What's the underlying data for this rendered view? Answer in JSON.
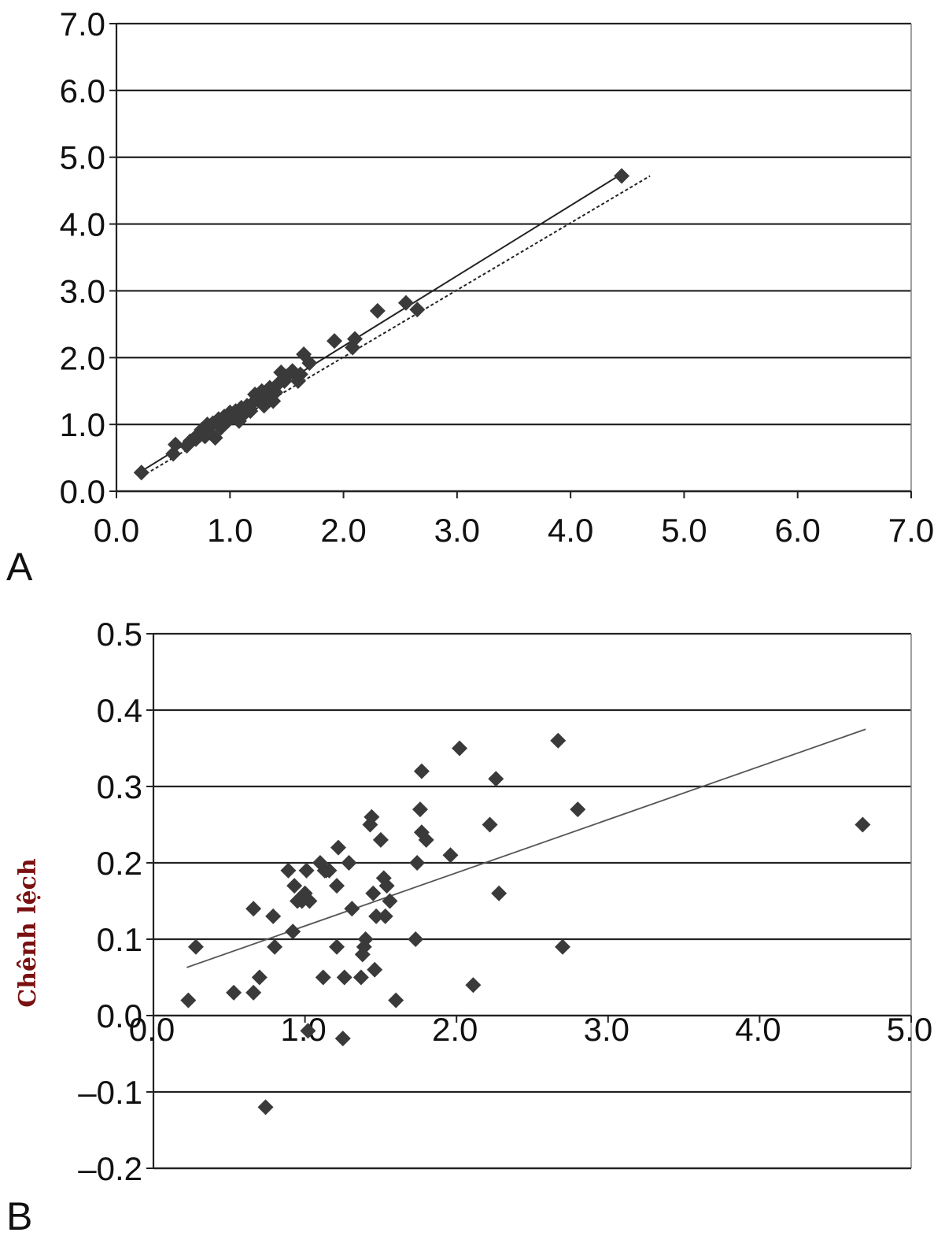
{
  "chart_data": [
    {
      "type": "scatter",
      "panel_label": "A",
      "xlabel": "",
      "ylabel": "",
      "xlim": [
        0,
        7
      ],
      "ylim": [
        0,
        7
      ],
      "x_ticks": [
        "0.0",
        "1.0",
        "2.0",
        "3.0",
        "4.0",
        "5.0",
        "6.0",
        "7.0"
      ],
      "y_ticks": [
        "0.0",
        "1.0",
        "2.0",
        "3.0",
        "4.0",
        "5.0",
        "6.0",
        "7.0"
      ],
      "grid": "horizontal",
      "marker": "diamond",
      "colors": {
        "marker": "#3a3a3a",
        "axis": "#222222"
      },
      "series": [
        {
          "points": [
            [
              0.22,
              0.28
            ],
            [
              0.5,
              0.56
            ],
            [
              0.52,
              0.7
            ],
            [
              0.62,
              0.68
            ],
            [
              0.65,
              0.75
            ],
            [
              0.7,
              0.78
            ],
            [
              0.72,
              0.85
            ],
            [
              0.75,
              0.92
            ],
            [
              0.78,
              0.82
            ],
            [
              0.8,
              1.0
            ],
            [
              0.82,
              0.88
            ],
            [
              0.85,
              1.02
            ],
            [
              0.87,
              0.8
            ],
            [
              0.9,
              1.08
            ],
            [
              0.92,
              0.95
            ],
            [
              0.95,
              1.12
            ],
            [
              0.98,
              1.05
            ],
            [
              1.0,
              1.18
            ],
            [
              1.02,
              1.1
            ],
            [
              1.05,
              1.2
            ],
            [
              1.08,
              1.05
            ],
            [
              1.1,
              1.25
            ],
            [
              1.12,
              1.15
            ],
            [
              1.15,
              1.28
            ],
            [
              1.18,
              1.2
            ],
            [
              1.2,
              1.32
            ],
            [
              1.22,
              1.45
            ],
            [
              1.25,
              1.38
            ],
            [
              1.28,
              1.5
            ],
            [
              1.3,
              1.28
            ],
            [
              1.32,
              1.42
            ],
            [
              1.35,
              1.55
            ],
            [
              1.38,
              1.35
            ],
            [
              1.4,
              1.48
            ],
            [
              1.42,
              1.6
            ],
            [
              1.45,
              1.78
            ],
            [
              1.48,
              1.65
            ],
            [
              1.5,
              1.72
            ],
            [
              1.55,
              1.8
            ],
            [
              1.6,
              1.65
            ],
            [
              1.62,
              1.75
            ],
            [
              1.65,
              2.05
            ],
            [
              1.7,
              1.92
            ],
            [
              1.92,
              2.25
            ],
            [
              2.08,
              2.15
            ],
            [
              2.1,
              2.28
            ],
            [
              2.3,
              2.7
            ],
            [
              2.55,
              2.82
            ],
            [
              2.65,
              2.72
            ],
            [
              4.45,
              4.72
            ]
          ]
        }
      ],
      "fit_lines": [
        {
          "style": "solid",
          "from": [
            0.22,
            0.3
          ],
          "to": [
            4.45,
            4.75
          ]
        },
        {
          "style": "dashed",
          "from": [
            0.22,
            0.22
          ],
          "to": [
            4.7,
            4.72
          ]
        }
      ]
    },
    {
      "type": "scatter",
      "panel_label": "B",
      "xlabel": "",
      "ylabel": "Chênh lệch",
      "xlim": [
        0,
        5
      ],
      "ylim": [
        -0.2,
        0.5
      ],
      "x_ticks": [
        "0.0",
        "1.0",
        "2.0",
        "3.0",
        "4.0",
        "5.0"
      ],
      "y_ticks": [
        "–0.2",
        "–0.1",
        "0.0",
        "0.1",
        "0.2",
        "0.3",
        "0.4",
        "0.5"
      ],
      "grid": "horizontal",
      "marker": "diamond",
      "colors": {
        "marker": "#3a3a3a",
        "axis": "#222222",
        "ylabel": "#7a1010"
      },
      "series": [
        {
          "points": [
            [
              0.23,
              0.02
            ],
            [
              0.28,
              0.09
            ],
            [
              0.53,
              0.03
            ],
            [
              0.66,
              0.14
            ],
            [
              0.66,
              0.03
            ],
            [
              0.7,
              0.05
            ],
            [
              0.74,
              -0.12
            ],
            [
              0.79,
              0.13
            ],
            [
              0.8,
              0.09
            ],
            [
              0.89,
              0.19
            ],
            [
              0.92,
              0.11
            ],
            [
              0.93,
              0.17
            ],
            [
              0.95,
              0.15
            ],
            [
              0.98,
              0.15
            ],
            [
              1.0,
              0.16
            ],
            [
              1.01,
              0.19
            ],
            [
              1.02,
              -0.02
            ],
            [
              1.03,
              0.15
            ],
            [
              1.1,
              0.2
            ],
            [
              1.12,
              0.05
            ],
            [
              1.13,
              0.19
            ],
            [
              1.14,
              0.19
            ],
            [
              1.16,
              0.19
            ],
            [
              1.21,
              0.17
            ],
            [
              1.21,
              0.09
            ],
            [
              1.22,
              0.22
            ],
            [
              1.25,
              -0.03
            ],
            [
              1.26,
              0.05
            ],
            [
              1.29,
              0.2
            ],
            [
              1.31,
              0.14
            ],
            [
              1.37,
              0.05
            ],
            [
              1.38,
              0.08
            ],
            [
              1.39,
              0.09
            ],
            [
              1.4,
              0.1
            ],
            [
              1.43,
              0.25
            ],
            [
              1.44,
              0.26
            ],
            [
              1.45,
              0.16
            ],
            [
              1.46,
              0.06
            ],
            [
              1.47,
              0.13
            ],
            [
              1.5,
              0.23
            ],
            [
              1.52,
              0.18
            ],
            [
              1.53,
              0.13
            ],
            [
              1.54,
              0.17
            ],
            [
              1.56,
              0.15
            ],
            [
              1.6,
              0.02
            ],
            [
              1.73,
              0.1
            ],
            [
              1.74,
              0.2
            ],
            [
              1.76,
              0.27
            ],
            [
              1.77,
              0.32
            ],
            [
              1.77,
              0.24
            ],
            [
              1.8,
              0.23
            ],
            [
              1.96,
              0.21
            ],
            [
              2.02,
              0.35
            ],
            [
              2.11,
              0.04
            ],
            [
              2.22,
              0.25
            ],
            [
              2.26,
              0.31
            ],
            [
              2.28,
              0.16
            ],
            [
              2.67,
              0.36
            ],
            [
              2.7,
              0.09
            ],
            [
              2.8,
              0.27
            ],
            [
              4.68,
              0.25
            ]
          ]
        }
      ],
      "fit_lines": [
        {
          "style": "solid",
          "from": [
            0.22,
            0.063
          ],
          "to": [
            4.7,
            0.375
          ]
        }
      ]
    }
  ]
}
